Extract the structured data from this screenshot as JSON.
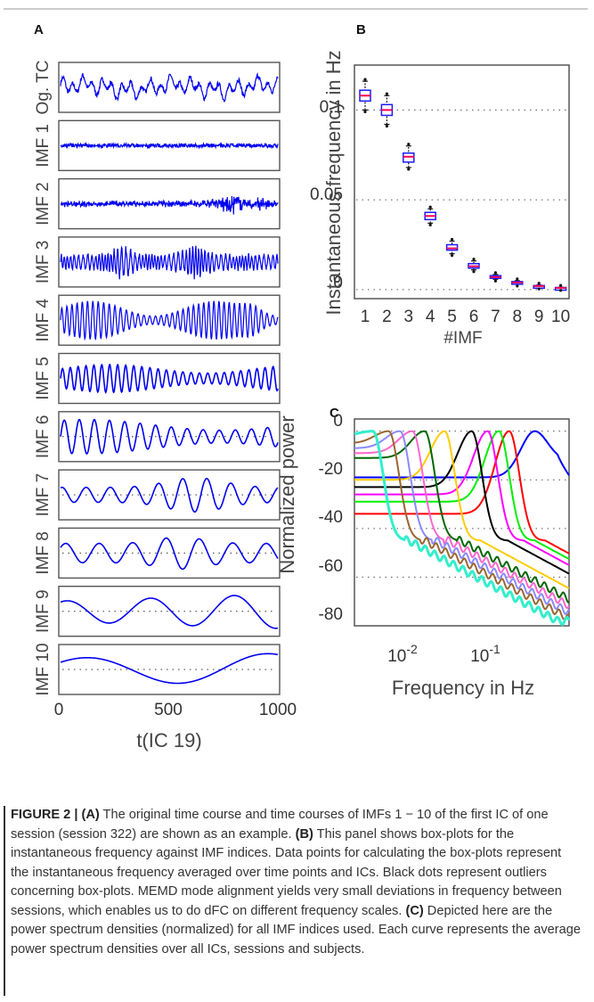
{
  "figure": {
    "panel_a": {
      "label": "A",
      "row_labels": [
        "Og. TC",
        "IMF 1",
        "IMF 2",
        "IMF 3",
        "IMF 4",
        "IMF 5",
        "IMF 6",
        "IMF 7",
        "IMF 8",
        "IMF 9",
        "IMF 10"
      ],
      "x_ticks": [
        "0",
        "500",
        "1000"
      ],
      "xlabel": "t(IC 19)",
      "xlim": [
        0,
        1200
      ]
    },
    "panel_b": {
      "label": "B",
      "ylabel": "Instantaneous frequency in Hz",
      "xlabel": "#IMF",
      "y_ticks": [
        "0",
        "0.05",
        "0.1"
      ],
      "x_ticks": [
        "1",
        "2",
        "3",
        "4",
        "5",
        "6",
        "7",
        "8",
        "9",
        "10"
      ]
    },
    "panel_c": {
      "label": "C",
      "ylabel": "Normalized power",
      "xlabel": "Frequency in Hz",
      "y_ticks": [
        "0",
        "-20",
        "-40",
        "-60",
        "-80"
      ],
      "x_tick_base": "10",
      "x_tick_exps": [
        "-2",
        "-1"
      ]
    }
  },
  "chart_data": [
    {
      "type": "line",
      "panel": "A",
      "description_rows": 11,
      "x": [
        0,
        1200
      ],
      "xlabel": "t(IC 19)",
      "xlim": [
        0,
        1200
      ],
      "series_color": "#0000ee"
    },
    {
      "type": "box",
      "panel": "B",
      "categories": [
        "1",
        "2",
        "3",
        "4",
        "5",
        "6",
        "7",
        "8",
        "9",
        "10"
      ],
      "median": [
        0.108,
        0.1,
        0.074,
        0.041,
        0.023,
        0.013,
        0.007,
        0.004,
        0.002,
        0.001
      ],
      "q1": [
        0.105,
        0.097,
        0.071,
        0.039,
        0.022,
        0.012,
        0.0065,
        0.0035,
        0.0017,
        0.0008
      ],
      "q3": [
        0.111,
        0.103,
        0.076,
        0.043,
        0.025,
        0.0145,
        0.0078,
        0.0045,
        0.0023,
        0.0012
      ],
      "whisker_low": [
        0.1,
        0.092,
        0.068,
        0.037,
        0.02,
        0.011,
        0.0058,
        0.003,
        0.0014,
        0.0006
      ],
      "whisker_high": [
        0.116,
        0.108,
        0.08,
        0.045,
        0.027,
        0.016,
        0.0085,
        0.005,
        0.0026,
        0.0014
      ],
      "ylim": [
        -0.005,
        0.125
      ],
      "xlabel": "#IMF",
      "ylabel": "Instantaneous frequency in Hz",
      "box_color": "#1a1aff",
      "median_color": "#ff0055"
    },
    {
      "type": "line",
      "panel": "C",
      "x_scale": "log",
      "xlim": [
        0.0025,
        0.6
      ],
      "ylim": [
        -80,
        5
      ],
      "xlabel": "Frequency in Hz",
      "ylabel": "Normalized power",
      "series": [
        {
          "color": "#0000ff",
          "peak_hz": 0.25,
          "low_level": -19
        },
        {
          "color": "#ff0000",
          "peak_hz": 0.13,
          "low_level": -34
        },
        {
          "color": "#00ee00",
          "peak_hz": 0.1,
          "low_level": -29
        },
        {
          "color": "#ff00ff",
          "peak_hz": 0.075,
          "low_level": -26
        },
        {
          "color": "#000000",
          "peak_hz": 0.05,
          "low_level": -23
        },
        {
          "color": "#ffcc00",
          "peak_hz": 0.025,
          "low_level": -20
        },
        {
          "color": "#006600",
          "peak_hz": 0.015,
          "low_level": -11
        },
        {
          "color": "#ff66cc",
          "peak_hz": 0.011,
          "low_level": -9
        },
        {
          "color": "#8a8aff",
          "peak_hz": 0.008,
          "low_level": -7
        },
        {
          "color": "#996633",
          "peak_hz": 0.006,
          "low_level": -5
        },
        {
          "color": "#33eecc",
          "peak_hz": 0.004,
          "low_level": -2
        }
      ]
    }
  ],
  "caption": {
    "label": "FIGURE 2 | ",
    "part_a_tag": "(A)",
    "part_a": " The original time course and time courses of IMFs 1 − 10 of the first IC of one session (session 322) are shown as an example. ",
    "part_b_tag": "(B)",
    "part_b": " This panel shows box-plots for the instantaneous frequency against IMF indices. Data points for calculating the box-plots represent the instantaneous frequency averaged over time points and ICs. Black dots represent outliers concerning box-plots. MEMD mode alignment yields very small deviations in frequency between sessions, which enables us to do dFC on different frequency scales. ",
    "part_c_tag": "(C)",
    "part_c": " Depicted here are the power spectrum densities (normalized) for all IMF indices used. Each curve represents the average power spectrum densities over all ICs, sessions and subjects."
  }
}
